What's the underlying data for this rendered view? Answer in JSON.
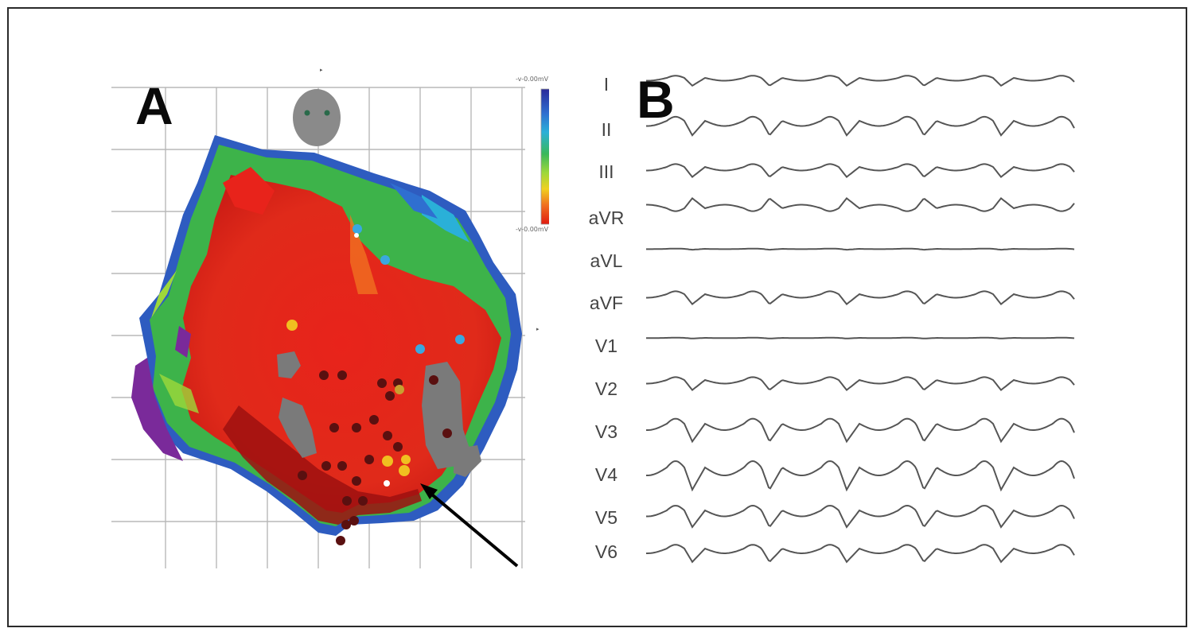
{
  "panel_a": {
    "letter": "A",
    "colorbar": {
      "top_label": "-v-0.00mV",
      "bottom_label": "-v-0.00mV",
      "colors": [
        "#2a2a9a",
        "#2f6fd0",
        "#2ab0d8",
        "#3ab85a",
        "#9ed83a",
        "#f0d020",
        "#f07020",
        "#e01a10"
      ]
    },
    "scar_color": "#7a7a7a",
    "tissue_colors": {
      "red": "#e8231b",
      "dark_red": "#9e1010",
      "green": "#3db34a",
      "blue": "#2e5cc0",
      "purple": "#7a2a9a"
    },
    "arrow_color": "#000000"
  },
  "panel_b": {
    "letter": "B",
    "leads": [
      "I",
      "II",
      "III",
      "aVR",
      "aVL",
      "aVF",
      "V1",
      "V2",
      "V3",
      "V4",
      "V5",
      "V6"
    ]
  }
}
